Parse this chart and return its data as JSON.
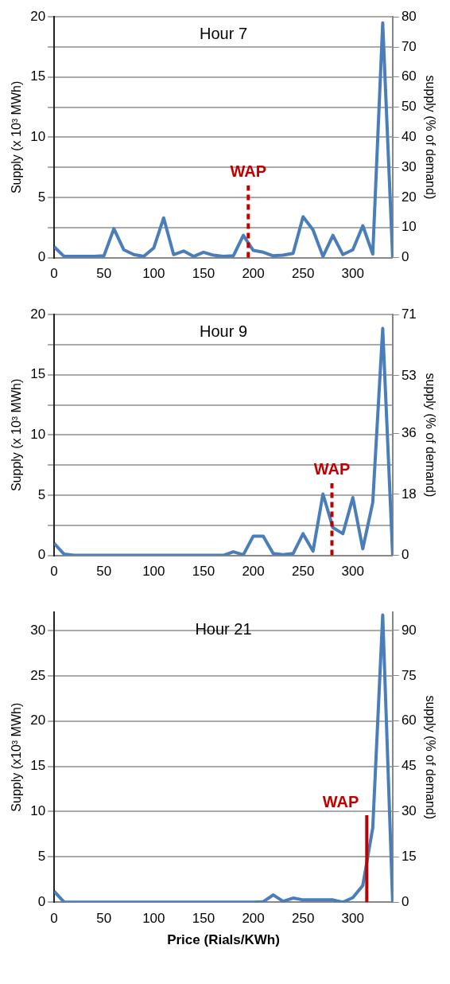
{
  "chart_data": [
    {
      "type": "line",
      "title": "Hour 7",
      "ylabel": "Supply (x 10³ MWh)",
      "y2label": "supply (% of demand)",
      "x": [
        0,
        10,
        20,
        30,
        40,
        50,
        60,
        70,
        80,
        90,
        100,
        110,
        120,
        130,
        140,
        150,
        160,
        170,
        180,
        190,
        200,
        210,
        220,
        230,
        240,
        250,
        260,
        270,
        280,
        290,
        300,
        310,
        320,
        330,
        340
      ],
      "series": [
        {
          "color": "#4a7ebb",
          "values": [
            0.9,
            0.1,
            0.1,
            0.1,
            0.1,
            0.15,
            2.4,
            0.65,
            0.25,
            0.1,
            0.8,
            3.3,
            0.25,
            0.55,
            0.1,
            0.45,
            0.2,
            0.1,
            0.15,
            1.85,
            0.6,
            0.45,
            0.15,
            0.2,
            0.35,
            3.4,
            2.3,
            0.1,
            1.85,
            0.25,
            0.65,
            2.65,
            0.3,
            19.5,
            0
          ]
        }
      ],
      "xlim": [
        0,
        340
      ],
      "xticks": [
        0,
        50,
        100,
        150,
        200,
        250,
        300
      ],
      "ylim": [
        0,
        20
      ],
      "yticks": [
        0,
        {
          "value": 2.5,
          "label": null
        },
        5,
        {
          "value": 7.5,
          "label": null
        },
        10,
        {
          "value": 12.5,
          "label": null
        },
        15,
        {
          "value": 17.5,
          "label": null
        },
        20
      ],
      "y2lim": [
        0,
        80
      ],
      "y2ticks": [
        0,
        10,
        20,
        30,
        40,
        50,
        60,
        70,
        80
      ],
      "ref_lines": [
        {
          "axis": "x",
          "value": 195,
          "label": "WAP",
          "color": "#c00000",
          "line_style": "dashed"
        }
      ],
      "grid": "y",
      "marker": "none"
    },
    {
      "type": "line",
      "title": "Hour 9",
      "ylabel": "Supply (x 10³ MWh)",
      "y2label": "supply (% of demand)",
      "x": [
        0,
        10,
        20,
        30,
        40,
        50,
        60,
        70,
        80,
        90,
        100,
        110,
        120,
        130,
        140,
        150,
        160,
        170,
        180,
        190,
        200,
        210,
        220,
        230,
        240,
        250,
        260,
        270,
        280,
        290,
        300,
        310,
        320,
        330,
        340
      ],
      "series": [
        {
          "color": "#4a7ebb",
          "values": [
            1.0,
            0.1,
            0,
            0,
            0,
            0,
            0,
            0,
            0,
            0,
            0,
            0,
            0,
            0,
            0,
            0,
            0,
            0,
            0.3,
            0.05,
            1.6,
            1.6,
            0.15,
            0.05,
            0.15,
            1.8,
            0.35,
            5.1,
            2.3,
            1.8,
            4.8,
            0.55,
            4.4,
            18.85,
            0
          ]
        }
      ],
      "xlim": [
        0,
        340
      ],
      "xticks": [
        0,
        50,
        100,
        150,
        200,
        250,
        300
      ],
      "ylim": [
        0,
        20
      ],
      "yticks": [
        0,
        {
          "value": 2.5,
          "label": null
        },
        5,
        {
          "value": 7.5,
          "label": null
        },
        10,
        {
          "value": 12.5,
          "label": null
        },
        15,
        {
          "value": 17.5,
          "label": null
        },
        20
      ],
      "y2lim": [
        0,
        71
      ],
      "y2ticks": [
        0,
        18,
        36,
        53,
        71
      ],
      "ref_lines": [
        {
          "axis": "x",
          "value": 279,
          "label": "WAP",
          "color": "#c00000",
          "line_style": "dashed"
        }
      ],
      "grid": "y",
      "marker": "none"
    },
    {
      "type": "line",
      "title": "Hour 21",
      "xlabel": "Price (Rials/KWh)",
      "ylabel": "Supply (x10³ MWh)",
      "y2label": "supply (% of demand)",
      "x": [
        0,
        10,
        20,
        30,
        40,
        50,
        60,
        70,
        80,
        90,
        100,
        110,
        120,
        130,
        140,
        150,
        160,
        170,
        180,
        190,
        200,
        210,
        220,
        230,
        240,
        250,
        260,
        270,
        280,
        290,
        300,
        310,
        320,
        330,
        340
      ],
      "series": [
        {
          "color": "#4a7ebb",
          "values": [
            1.2,
            0,
            0,
            0,
            0,
            0,
            0,
            0,
            0,
            0,
            0,
            0,
            0,
            0,
            0,
            0,
            0,
            0,
            0,
            0,
            0,
            0.05,
            0.8,
            0.1,
            0.45,
            0.25,
            0.25,
            0.25,
            0.25,
            0,
            0.5,
            1.85,
            8.2,
            31.7,
            0
          ]
        }
      ],
      "xlim": [
        0,
        340
      ],
      "xticks": [
        0,
        50,
        100,
        150,
        200,
        250,
        300
      ],
      "ylim": [
        0,
        32
      ],
      "yticks": [
        0,
        5,
        10,
        15,
        20,
        25,
        30
      ],
      "y2lim": [
        0,
        96
      ],
      "y2ticks": [
        0,
        15,
        30,
        45,
        60,
        75,
        90
      ],
      "ref_lines": [
        {
          "axis": "x",
          "value": 314,
          "label": "WAP",
          "color": "#c00000",
          "line_style": "solid"
        }
      ],
      "grid": "y",
      "marker": "none"
    }
  ]
}
